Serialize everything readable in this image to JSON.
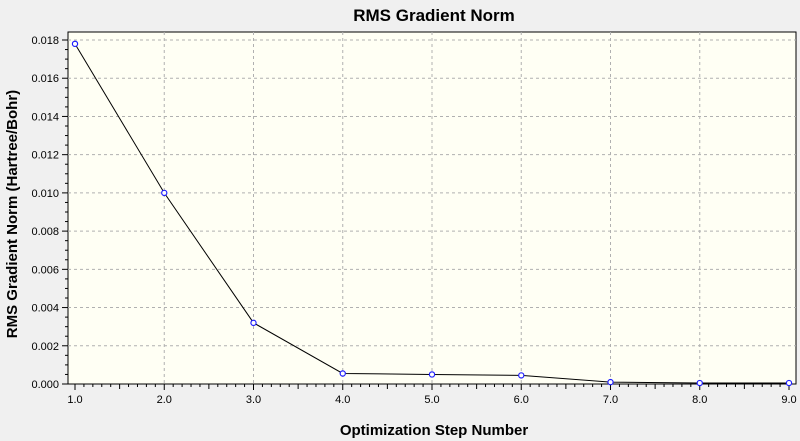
{
  "chart_data": {
    "type": "line",
    "title": "RMS Gradient Norm",
    "xlabel": "Optimization Step Number",
    "ylabel": "RMS Gradient Norm (Hartree/Bohr)",
    "xlim": [
      1.0,
      9.0
    ],
    "ylim": [
      0.0,
      0.018
    ],
    "x_ticks": [
      "1.0",
      "2.0",
      "3.0",
      "4.0",
      "5.0",
      "6.0",
      "7.0",
      "8.0",
      "9.0"
    ],
    "y_ticks": [
      "0.000",
      "0.002",
      "0.004",
      "0.006",
      "0.008",
      "0.010",
      "0.012",
      "0.014",
      "0.016",
      "0.018"
    ],
    "grid": true,
    "legend": "none",
    "series": [
      {
        "x": [
          1,
          2,
          3,
          4,
          5,
          6,
          7,
          8,
          9
        ],
        "values": [
          0.0178,
          0.01,
          0.0032,
          0.00055,
          0.0005,
          0.00045,
          0.0001,
          5e-05,
          5e-05
        ]
      }
    ],
    "colors": {
      "background": "#f0f0f0",
      "plot_area": "#fffff4",
      "grid": "#b0b0b0",
      "line": "#000000",
      "marker": "#2020ff"
    }
  }
}
